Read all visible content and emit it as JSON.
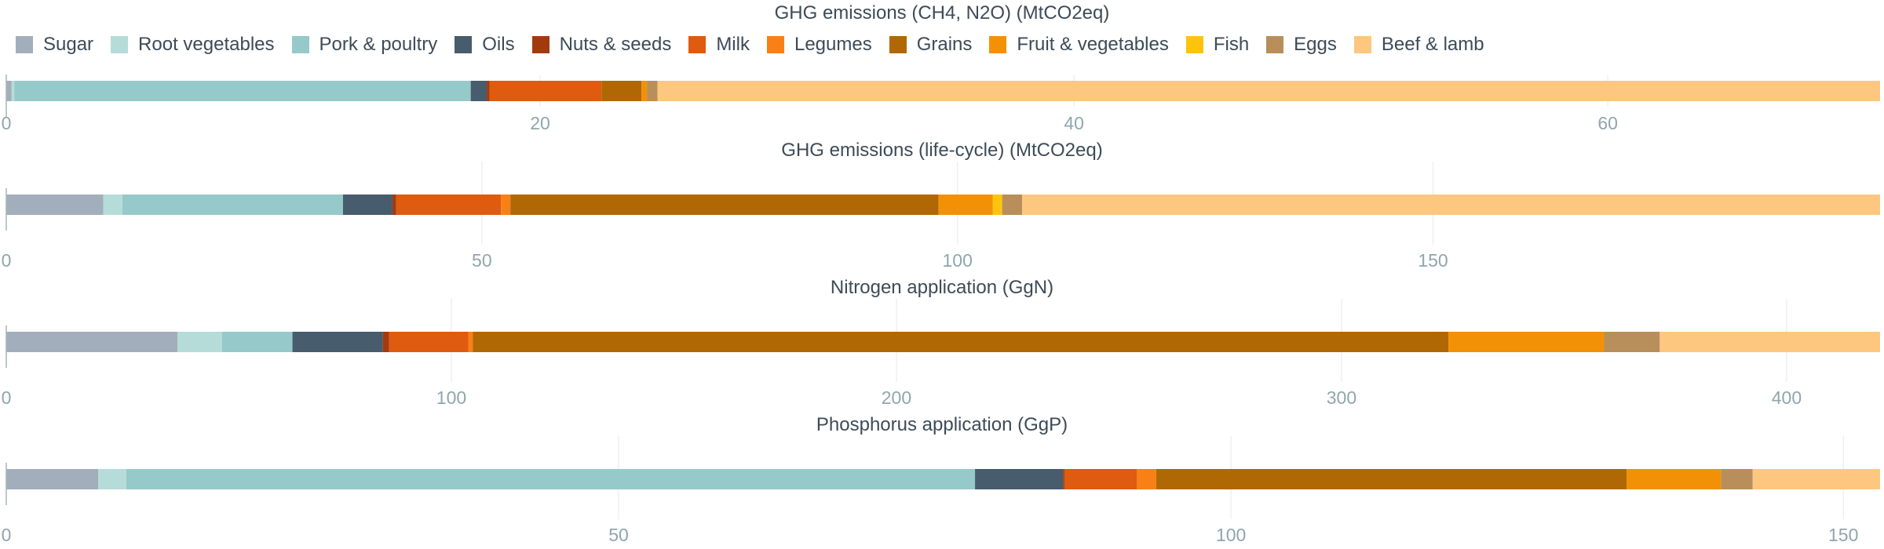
{
  "categories": [
    "Sugar",
    "Root vegetables",
    "Pork & poultry",
    "Oils",
    "Nuts & seeds",
    "Milk",
    "Legumes",
    "Grains",
    "Fruit & vegetables",
    "Fish",
    "Eggs",
    "Beef & lamb"
  ],
  "colors": {
    "Sugar": "#a2aebb",
    "Root vegetables": "#b5dcd9",
    "Pork & poultry": "#96c9c9",
    "Oils": "#475c6c",
    "Nuts & seeds": "#a33a0f",
    "Milk": "#df5b10",
    "Legumes": "#f88016",
    "Grains": "#b06805",
    "Fruit & vegetables": "#f39106",
    "Fish": "#fec40d",
    "Eggs": "#b88f5a",
    "Beef & lamb": "#fdc77f"
  },
  "chart_data": [
    {
      "type": "bar",
      "orientation": "horizontal",
      "stacked": true,
      "title": "GHG emissions (CH4, N2O) (MtCO2eq)",
      "xlim": [
        0,
        70.2
      ],
      "xticks": [
        0,
        20,
        40,
        60
      ],
      "series": [
        {
          "name": "Sugar",
          "value": 0.2
        },
        {
          "name": "Root vegetables",
          "value": 0.1
        },
        {
          "name": "Pork & poultry",
          "value": 17.1
        },
        {
          "name": "Oils",
          "value": 0.6
        },
        {
          "name": "Nuts & seeds",
          "value": 0.1
        },
        {
          "name": "Milk",
          "value": 4.2
        },
        {
          "name": "Legumes",
          "value": 0.0
        },
        {
          "name": "Grains",
          "value": 1.5
        },
        {
          "name": "Fruit & vegetables",
          "value": 0.2
        },
        {
          "name": "Fish",
          "value": 0.0
        },
        {
          "name": "Eggs",
          "value": 0.4
        },
        {
          "name": "Beef & lamb",
          "value": 45.8
        }
      ]
    },
    {
      "type": "bar",
      "orientation": "horizontal",
      "stacked": true,
      "title": "GHG emissions (life-cycle) (MtCO2eq)",
      "xlim": [
        0,
        197
      ],
      "xticks": [
        0,
        50,
        100,
        150
      ],
      "series": [
        {
          "name": "Sugar",
          "value": 10.2
        },
        {
          "name": "Root vegetables",
          "value": 2.0
        },
        {
          "name": "Pork & poultry",
          "value": 23.2
        },
        {
          "name": "Oils",
          "value": 5.2
        },
        {
          "name": "Nuts & seeds",
          "value": 0.4
        },
        {
          "name": "Milk",
          "value": 11.0
        },
        {
          "name": "Legumes",
          "value": 1.0
        },
        {
          "name": "Grains",
          "value": 45.0
        },
        {
          "name": "Fruit & vegetables",
          "value": 5.7
        },
        {
          "name": "Fish",
          "value": 1.0
        },
        {
          "name": "Eggs",
          "value": 2.1
        },
        {
          "name": "Beef & lamb",
          "value": 90.2
        }
      ]
    },
    {
      "type": "bar",
      "orientation": "horizontal",
      "stacked": true,
      "title": "Nitrogen application (GgN)",
      "xlim": [
        0,
        421
      ],
      "xticks": [
        0,
        100,
        200,
        300,
        400
      ],
      "series": [
        {
          "name": "Sugar",
          "value": 38.5
        },
        {
          "name": "Root vegetables",
          "value": 10.0
        },
        {
          "name": "Pork & poultry",
          "value": 15.8
        },
        {
          "name": "Oils",
          "value": 20.3
        },
        {
          "name": "Nuts & seeds",
          "value": 1.4
        },
        {
          "name": "Milk",
          "value": 17.8
        },
        {
          "name": "Legumes",
          "value": 1.0
        },
        {
          "name": "Grains",
          "value": 219.2
        },
        {
          "name": "Fruit & vegetables",
          "value": 35.0
        },
        {
          "name": "Fish",
          "value": 0.0
        },
        {
          "name": "Eggs",
          "value": 12.5
        },
        {
          "name": "Beef & lamb",
          "value": 49.5
        }
      ]
    },
    {
      "type": "bar",
      "orientation": "horizontal",
      "stacked": true,
      "title": "Phosphorus application (GgP)",
      "xlim": [
        0,
        153
      ],
      "xticks": [
        0,
        50,
        100,
        150
      ],
      "series": [
        {
          "name": "Sugar",
          "value": 7.5
        },
        {
          "name": "Root vegetables",
          "value": 2.3
        },
        {
          "name": "Pork & poultry",
          "value": 69.3
        },
        {
          "name": "Oils",
          "value": 7.2
        },
        {
          "name": "Nuts & seeds",
          "value": 0.1
        },
        {
          "name": "Milk",
          "value": 5.9
        },
        {
          "name": "Legumes",
          "value": 1.6
        },
        {
          "name": "Grains",
          "value": 38.4
        },
        {
          "name": "Fruit & vegetables",
          "value": 7.7
        },
        {
          "name": "Fish",
          "value": 0.0
        },
        {
          "name": "Eggs",
          "value": 2.6
        },
        {
          "name": "Beef & lamb",
          "value": 10.4
        }
      ]
    }
  ]
}
